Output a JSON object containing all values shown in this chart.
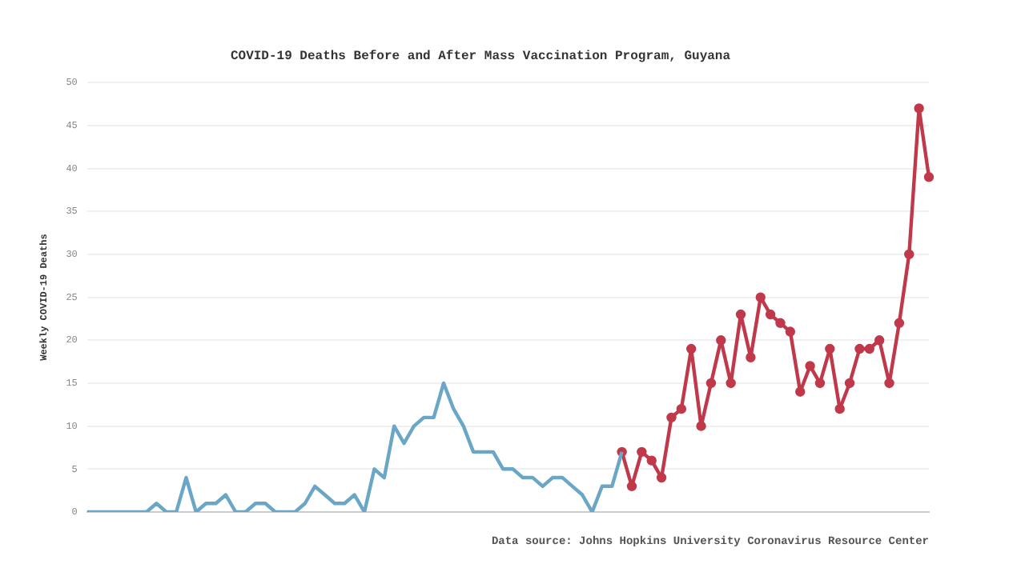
{
  "chart_data": {
    "type": "line",
    "title": "COVID-19 Deaths Before and After Mass Vaccination Program, Guyana",
    "ylabel": "Weekly COVID-19 Deaths",
    "annotations": [
      "Data source: Johns Hopkins University Coronavirus Resource Center"
    ],
    "categories": [
      null,
      null,
      null,
      null,
      null,
      null,
      null,
      null,
      null,
      null,
      null,
      null,
      null,
      null,
      null,
      null,
      null,
      null,
      null,
      null,
      null,
      null,
      null,
      null,
      null,
      null,
      null,
      null,
      null,
      null,
      null,
      null,
      null,
      null,
      null,
      null,
      null,
      null,
      null,
      null,
      null,
      null,
      null,
      null,
      null,
      null,
      null,
      null,
      null,
      null,
      null,
      null,
      null,
      null,
      null,
      null,
      null,
      null,
      null,
      null,
      null,
      null,
      null,
      null,
      null,
      null,
      null,
      null,
      null,
      null,
      null,
      null,
      null,
      null,
      null,
      null,
      null,
      null,
      null,
      null,
      null,
      null,
      null,
      null,
      null,
      null
    ],
    "series": [
      {
        "color": "#6aa6c6",
        "marker": "none",
        "values": [
          0,
          0,
          0,
          0,
          0,
          0,
          0,
          1,
          0,
          0,
          4,
          0,
          1,
          1,
          2,
          0,
          0,
          1,
          1,
          0,
          0,
          0,
          1,
          3,
          2,
          1,
          1,
          2,
          0,
          5,
          4,
          10,
          8,
          10,
          11,
          11,
          15,
          12,
          10,
          7,
          7,
          7,
          5,
          5,
          4,
          4,
          3,
          4,
          4,
          3,
          2,
          0,
          3,
          3,
          7,
          null,
          null,
          null,
          null,
          null,
          null,
          null,
          null,
          null,
          null,
          null,
          null,
          null,
          null,
          null,
          null,
          null,
          null,
          null,
          null,
          null,
          null,
          null,
          null,
          null,
          null,
          null,
          null,
          null,
          null,
          null
        ]
      },
      {
        "color": "#c0394b",
        "marker": "circle",
        "values": [
          null,
          null,
          null,
          null,
          null,
          null,
          null,
          null,
          null,
          null,
          null,
          null,
          null,
          null,
          null,
          null,
          null,
          null,
          null,
          null,
          null,
          null,
          null,
          null,
          null,
          null,
          null,
          null,
          null,
          null,
          null,
          null,
          null,
          null,
          null,
          null,
          null,
          null,
          null,
          null,
          null,
          null,
          null,
          null,
          null,
          null,
          null,
          null,
          null,
          null,
          null,
          null,
          null,
          null,
          7,
          3,
          7,
          6,
          4,
          11,
          12,
          19,
          10,
          15,
          20,
          15,
          23,
          18,
          25,
          23,
          22,
          21,
          14,
          17,
          15,
          19,
          12,
          15,
          19,
          19,
          20,
          15,
          22,
          30,
          47,
          39
        ]
      }
    ],
    "ylim": [
      0,
      50
    ],
    "yticks": [
      0,
      5,
      10,
      15,
      20,
      25,
      30,
      35,
      40,
      45,
      50
    ],
    "grid": "y",
    "legend": false,
    "tick_labels": "y",
    "line_style": "solid"
  }
}
